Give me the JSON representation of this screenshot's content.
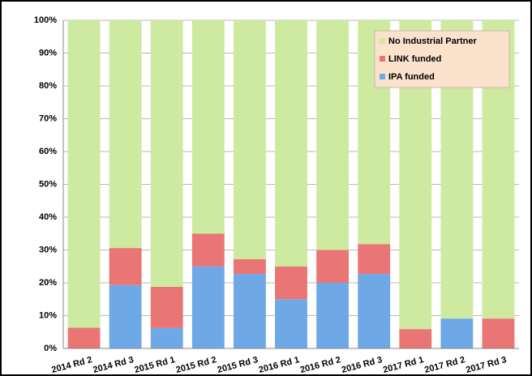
{
  "chart_data": {
    "type": "stacked_bar",
    "categories": [
      "2014 Rd 2",
      "2014 Rd 3",
      "2015 Rd 1",
      "2015 Rd 2",
      "2015 Rd 3",
      "2016 Rd 1",
      "2016 Rd 2",
      "2016 Rd 3",
      "2017 Rd 1",
      "2017 Rd 2",
      "2017 Rd 3"
    ],
    "series": [
      {
        "name": "IPA funded",
        "color": "#6fa8e6",
        "values": [
          0,
          19.3,
          6.2,
          25,
          22.7,
          15,
          20,
          22.7,
          0,
          9.1,
          0
        ]
      },
      {
        "name": "LINK funded",
        "color": "#e97575",
        "values": [
          6.3,
          11.3,
          12.6,
          10,
          4.5,
          10,
          10,
          9.1,
          5.9,
          0,
          9.1
        ]
      },
      {
        "name": "No Industrial Partner",
        "color": "#cdeaa0",
        "values": [
          93.7,
          69.4,
          81.2,
          65,
          72.8,
          75,
          70,
          68.2,
          94.1,
          90.9,
          90.9
        ]
      }
    ],
    "ylim": [
      0,
      100
    ],
    "yticks": [
      {
        "value": 0,
        "label": "0%"
      },
      {
        "value": 10,
        "label": "10%"
      },
      {
        "value": 20,
        "label": "20%"
      },
      {
        "value": 30,
        "label": "30%"
      },
      {
        "value": 40,
        "label": "40%"
      },
      {
        "value": 50,
        "label": "50%"
      },
      {
        "value": 60,
        "label": "60%"
      },
      {
        "value": 70,
        "label": "70%"
      },
      {
        "value": 80,
        "label": "80%"
      },
      {
        "value": 90,
        "label": "90%"
      },
      {
        "value": 100,
        "label": "100%"
      }
    ],
    "grid": true,
    "legend": "top-right"
  }
}
